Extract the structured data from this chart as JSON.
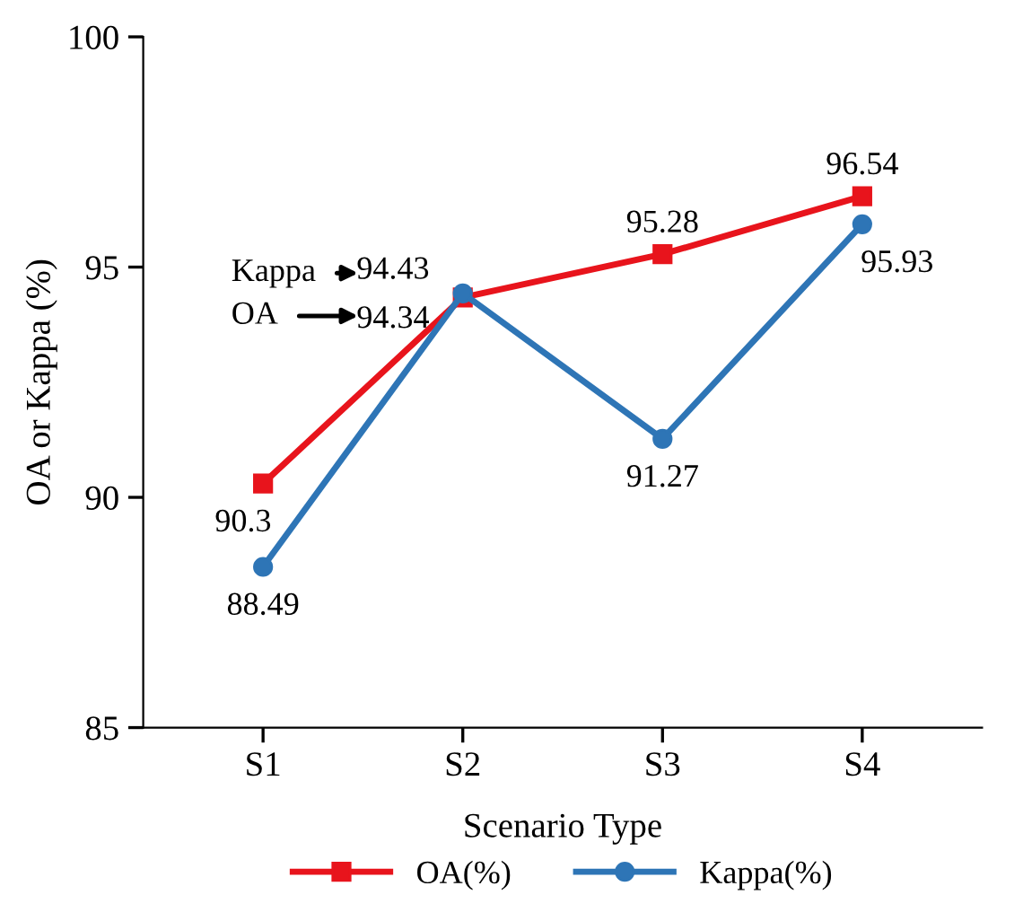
{
  "chart_data": {
    "type": "line",
    "xlabel": "Scenario Type",
    "ylabel": "OA or Kappa (%)",
    "categories": [
      "S1",
      "S2",
      "S3",
      "S4"
    ],
    "series": [
      {
        "name": "OA(%)",
        "color": "#e8141c",
        "marker": "square",
        "values": [
          90.3,
          94.34,
          95.28,
          96.54
        ]
      },
      {
        "name": "Kappa(%)",
        "color": "#2e75b6",
        "marker": "circle",
        "values": [
          88.49,
          94.43,
          91.27,
          95.93
        ]
      }
    ],
    "ylim": [
      85,
      100
    ],
    "yticks": [
      85,
      90,
      95,
      100
    ],
    "grid": false,
    "legend": "bottom",
    "data_labels": true,
    "annotations": [
      "Kappa",
      "OA"
    ]
  }
}
